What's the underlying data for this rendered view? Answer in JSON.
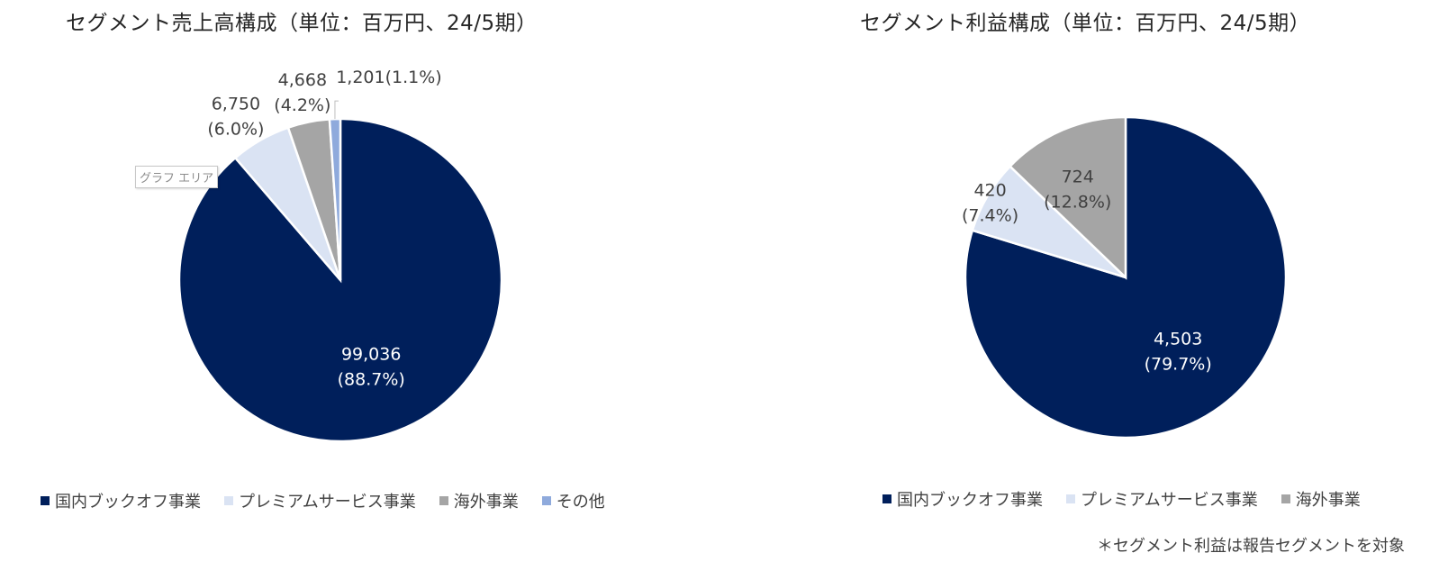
{
  "colors": {
    "domestic": "#001F5B",
    "premium": "#DAE3F3",
    "overseas": "#A5A5A5",
    "other": "#8FAADC",
    "label_light": "#FFFFFF",
    "label_dark": "#404040"
  },
  "tooltip": "グラフ エリア",
  "footnote": "＊セグメント利益は報告セグメントを対象",
  "chart_data": [
    {
      "type": "pie",
      "title": "セグメント売上高構成（単位：百万円、24/5期）",
      "start_angle_deg": 0,
      "direction": "clockwise",
      "slices": [
        {
          "name": "国内ブックオフ事業",
          "value": 99036,
          "value_label": "99,036",
          "percent_label": "(88.7%)",
          "color_key": "domestic"
        },
        {
          "name": "プレミアムサービス事業",
          "value": 6750,
          "value_label": "6,750",
          "percent_label": "(6.0%)",
          "color_key": "premium"
        },
        {
          "name": "海外事業",
          "value": 4668,
          "value_label": "4,668",
          "percent_label": "(4.2%)",
          "color_key": "overseas"
        },
        {
          "name": "その他",
          "value": 1201,
          "value_label": "1,201",
          "percent_label": "(1.1%)",
          "color_key": "other"
        }
      ],
      "legend_placement": "bottom"
    },
    {
      "type": "pie",
      "title": "セグメント利益構成（単位：百万円、24/5期）",
      "start_angle_deg": 0,
      "direction": "clockwise",
      "slices": [
        {
          "name": "国内ブックオフ事業",
          "value": 4503,
          "value_label": "4,503",
          "percent_label": "(79.7%)",
          "color_key": "domestic"
        },
        {
          "name": "プレミアムサービス事業",
          "value": 420,
          "value_label": "420",
          "percent_label": "(7.4%)",
          "color_key": "premium"
        },
        {
          "name": "海外事業",
          "value": 724,
          "value_label": "724",
          "percent_label": "(12.8%)",
          "color_key": "overseas"
        }
      ],
      "legend_placement": "bottom"
    }
  ]
}
